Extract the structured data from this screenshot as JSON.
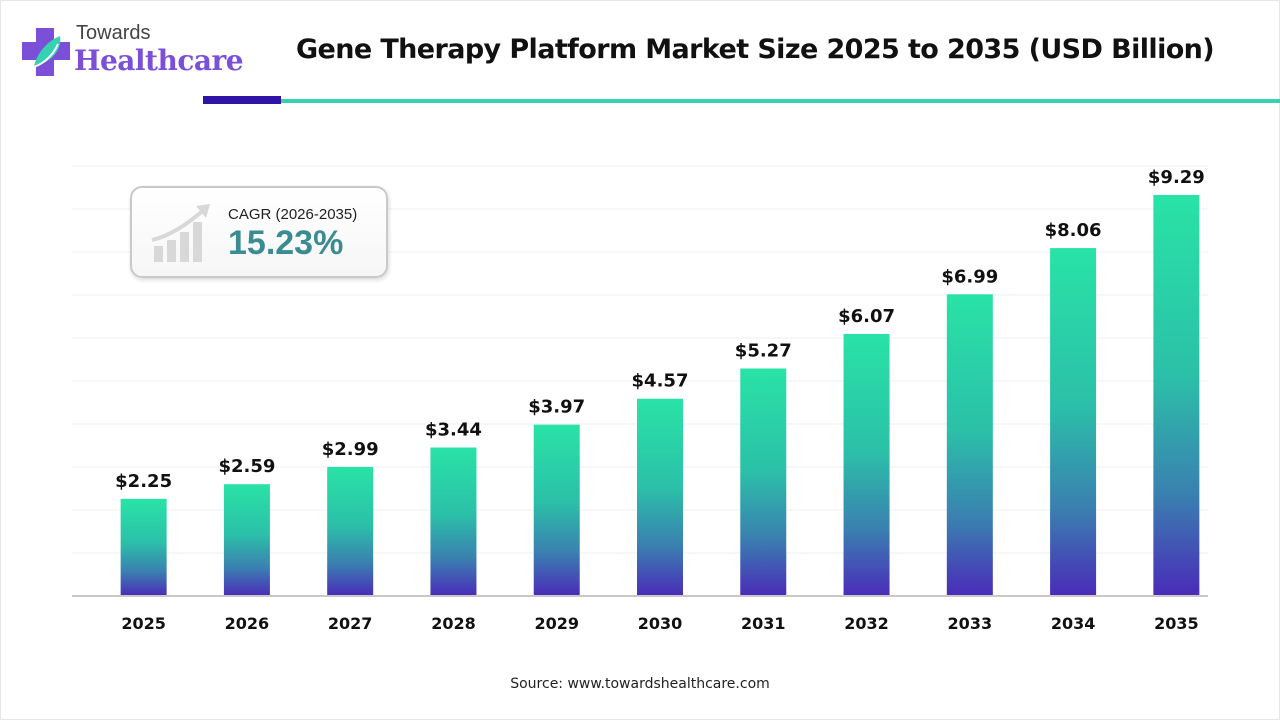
{
  "brand": {
    "line1": "Towards",
    "line2": "Healthcare",
    "colors": {
      "purple": "#7b4fd8",
      "teal": "#35d2b0",
      "dark_blue": "#3014a8"
    }
  },
  "cagr": {
    "label": "CAGR (2026-2035)",
    "value": "15.23%"
  },
  "source": "Source: www.towardshealthcare.com",
  "chart_data": {
    "type": "bar",
    "title": "Gene Therapy Platform Market Size 2025 to 2035 (USD Billion)",
    "xlabel": "",
    "ylabel": "",
    "categories": [
      "2025",
      "2026",
      "2027",
      "2028",
      "2029",
      "2030",
      "2031",
      "2032",
      "2033",
      "2034",
      "2035"
    ],
    "values": [
      2.25,
      2.59,
      2.99,
      3.44,
      3.97,
      4.57,
      5.27,
      6.07,
      6.99,
      8.06,
      9.29
    ],
    "value_labels": [
      "$2.25",
      "$2.59",
      "$2.99",
      "$3.44",
      "$3.97",
      "$4.57",
      "$5.27",
      "$6.07",
      "$6.99",
      "$8.06",
      "$9.29"
    ],
    "ylim": [
      0,
      10
    ],
    "grid": true,
    "legend": "none",
    "bar_gradient": {
      "top": "#29e3a6",
      "bottom": "#4a2bb8"
    }
  }
}
